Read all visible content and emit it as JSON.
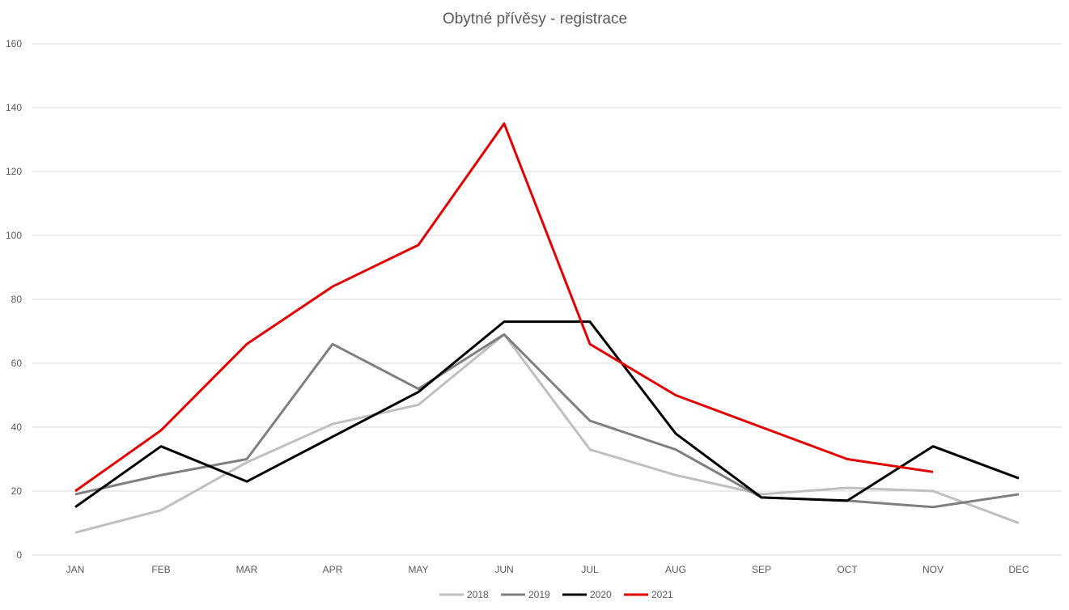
{
  "chart_data": {
    "type": "line",
    "title": "Obytné přívěsy - registrace",
    "xlabel": "",
    "ylabel": "",
    "categories": [
      "JAN",
      "FEB",
      "MAR",
      "APR",
      "MAY",
      "JUN",
      "JUL",
      "AUG",
      "SEP",
      "OCT",
      "NOV",
      "DEC"
    ],
    "ylim": [
      0,
      160
    ],
    "yticks": [
      0,
      20,
      40,
      60,
      80,
      100,
      120,
      140,
      160
    ],
    "grid": true,
    "legend_position": "bottom",
    "series": [
      {
        "name": "2018",
        "color": "#bfbfbf",
        "values": [
          7,
          14,
          29,
          41,
          47,
          69,
          33,
          25,
          19,
          21,
          20,
          10
        ]
      },
      {
        "name": "2019",
        "color": "#7f7f7f",
        "values": [
          19,
          25,
          30,
          66,
          52,
          69,
          42,
          33,
          18,
          17,
          15,
          19
        ]
      },
      {
        "name": "2020",
        "color": "#000000",
        "values": [
          15,
          34,
          23,
          37,
          51,
          73,
          73,
          38,
          18,
          17,
          34,
          24
        ]
      },
      {
        "name": "2021",
        "color": "#e00000",
        "values": [
          20,
          39,
          66,
          84,
          97,
          135,
          66,
          50,
          40,
          30,
          26,
          null
        ]
      }
    ]
  }
}
